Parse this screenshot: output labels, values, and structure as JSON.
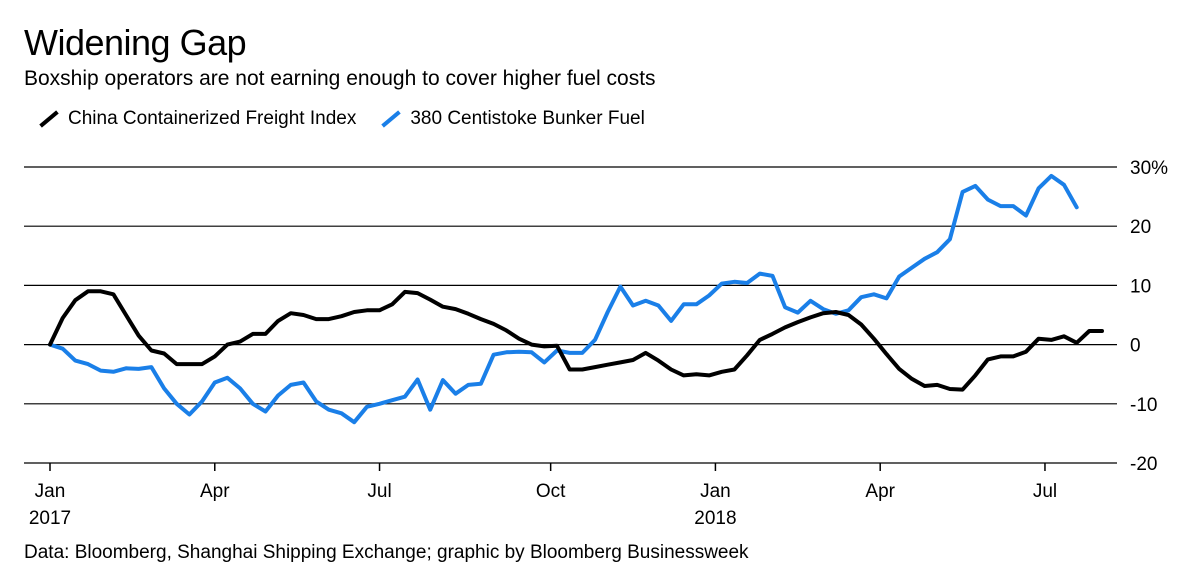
{
  "title": "Widening Gap",
  "subtitle": "Boxship operators are not earning enough to cover higher fuel costs",
  "source": "Data: Bloomberg, Shanghai Shipping Exchange; graphic by Bloomberg Businessweek",
  "colors": {
    "series_black": "#000000",
    "series_blue": "#1a7fe8",
    "grid": "#000000"
  },
  "chart_data": {
    "type": "line",
    "title": "Widening Gap",
    "subtitle": "Boxship operators are not earning enough to cover higher fuel costs",
    "xlabel": "",
    "ylabel": "",
    "x_unit": "weeks since Jan 2017",
    "xlim": [
      0,
      83
    ],
    "ylim": [
      -20,
      30
    ],
    "y_ticks": [
      30,
      20,
      10,
      0,
      -10,
      -20
    ],
    "y_tick_labels": [
      "30%",
      "20",
      "10",
      "0",
      "-10",
      "-20"
    ],
    "x_ticks": [
      {
        "x": 0,
        "month": "Jan",
        "year": "2017"
      },
      {
        "x": 13,
        "month": "Apr",
        "year": ""
      },
      {
        "x": 26,
        "month": "Jul",
        "year": ""
      },
      {
        "x": 39.5,
        "month": "Oct",
        "year": ""
      },
      {
        "x": 52.5,
        "month": "Jan",
        "year": "2018"
      },
      {
        "x": 65.5,
        "month": "Apr",
        "year": ""
      },
      {
        "x": 78.5,
        "month": "Jul",
        "year": ""
      }
    ],
    "grid": true,
    "legend_position": "top-left",
    "series": [
      {
        "name": "China Containerized Freight Index",
        "color": "#000000",
        "values": [
          0,
          4.5,
          7.5,
          9,
          9,
          8.5,
          5,
          1.5,
          -1,
          -1.5,
          -3.3,
          -3.3,
          -3.3,
          -2,
          0,
          0.5,
          1.8,
          1.8,
          4,
          5.3,
          5,
          4.3,
          4.3,
          4.8,
          5.5,
          5.8,
          5.8,
          6.8,
          8.9,
          8.7,
          7.6,
          6.4,
          6,
          5.2,
          4.3,
          3.5,
          2.4,
          1,
          0,
          -0.3,
          -0.2,
          -4.2,
          -4.2,
          -3.8,
          -3.4,
          -3,
          -2.6,
          -1.4,
          -2.7,
          -4.2,
          -5.2,
          -5,
          -5.2,
          -4.6,
          -4.2,
          -1.8,
          0.8,
          1.8,
          2.9,
          3.8,
          4.6,
          5.3,
          5.5,
          5,
          3.4,
          1,
          -1.6,
          -4.1,
          -5.8,
          -7,
          -6.8,
          -7.5,
          -7.6,
          -5.2,
          -2.5,
          -2,
          -2,
          -1.2,
          1,
          0.8,
          1.4,
          0.3,
          2.3,
          2.3
        ]
      },
      {
        "name": "380 Centistoke Bunker Fuel",
        "color": "#1a7fe8",
        "values": [
          0,
          -0.7,
          -2.7,
          -3.3,
          -4.4,
          -4.6,
          -4,
          -4.1,
          -3.8,
          -7.4,
          -10,
          -11.8,
          -9.6,
          -6.4,
          -5.6,
          -7.4,
          -10,
          -11.3,
          -8.6,
          -6.8,
          -6.4,
          -9.6,
          -11,
          -11.6,
          -13.1,
          -10.5,
          -10,
          -9.4,
          -8.8,
          -5.9,
          -11,
          -6,
          -8.3,
          -6.8,
          -6.6,
          -1.7,
          -1.3,
          -1.2,
          -1.3,
          -3,
          -1,
          -1.4,
          -1.4,
          0.8,
          5.5,
          9.8,
          6.6,
          7.4,
          6.6,
          4,
          6.8,
          6.8,
          8.3,
          10.3,
          10.6,
          10.4,
          12,
          11.6,
          6.3,
          5.4,
          7.4,
          6,
          5.2,
          5.8,
          8,
          8.5,
          7.8,
          11.5,
          13,
          14.5,
          15.6,
          17.8,
          25.8,
          26.8,
          24.5,
          23.4,
          23.4,
          21.8,
          26.4,
          28.5,
          27,
          23.2
        ]
      }
    ]
  }
}
